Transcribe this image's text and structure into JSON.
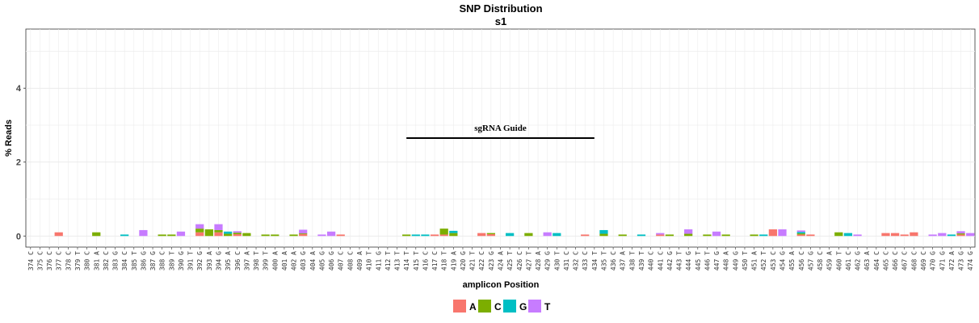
{
  "chart_data": {
    "type": "bar",
    "stacked": true,
    "title": "SNP Distribution",
    "subtitle": "s1",
    "xlabel": "amplicon Position",
    "ylabel": "% Reads",
    "ylim": [
      -0.3,
      5.6
    ],
    "yticks": [
      0,
      2,
      4
    ],
    "grid": true,
    "legend_position": "bottom",
    "categories": [
      "374 C",
      "375 C",
      "376 C",
      "377 C",
      "378 C",
      "379 T",
      "380 C",
      "381 A",
      "382 C",
      "383 G",
      "384 C",
      "385 T",
      "386 G",
      "387 G",
      "388 C",
      "389 T",
      "390 G",
      "391 T",
      "392 G",
      "393 A",
      "394 G",
      "395 A",
      "396 C",
      "397 A",
      "398 T",
      "399 T",
      "400 A",
      "401 A",
      "402 A",
      "403 G",
      "404 A",
      "405 G",
      "406 G",
      "407 C",
      "408 C",
      "409 A",
      "410 T",
      "411 G",
      "412 T",
      "413 T",
      "414 T",
      "415 T",
      "416 C",
      "417 C",
      "418 T",
      "419 A",
      "420 G",
      "421 T",
      "422 C",
      "423 G",
      "424 A",
      "425 T",
      "426 C",
      "427 T",
      "428 A",
      "429 G",
      "430 T",
      "431 C",
      "432 C",
      "433 C",
      "434 T",
      "435 T",
      "436 C",
      "437 A",
      "438 T",
      "439 T",
      "440 C",
      "441 C",
      "442 G",
      "443 T",
      "444 G",
      "445 T",
      "446 T",
      "447 G",
      "448 A",
      "449 G",
      "450 T",
      "451 A",
      "452 T",
      "453 C",
      "454 G",
      "455 A",
      "456 C",
      "457 G",
      "458 C",
      "459 A",
      "460 T",
      "461 C",
      "462 G",
      "463 A",
      "464 C",
      "465 C",
      "466 C",
      "467 C",
      "468 C",
      "469 C",
      "470 G",
      "471 G",
      "472 A",
      "473 G",
      "474 G"
    ],
    "series": [
      {
        "name": "A",
        "color": "#F8766D",
        "values": [
          0,
          0,
          0,
          0.1,
          0,
          0,
          0,
          0,
          0,
          0,
          0,
          0,
          0,
          0,
          0,
          0,
          0,
          0,
          0.1,
          0,
          0.1,
          0,
          0.05,
          0,
          0,
          0,
          0,
          0,
          0,
          0.05,
          0,
          0,
          0,
          0.04,
          0,
          0,
          0,
          0,
          0,
          0,
          0,
          0,
          0,
          0.04,
          0.04,
          0,
          0,
          0,
          0.08,
          0.05,
          0,
          0,
          0,
          0,
          0,
          0,
          0,
          0,
          0,
          0.04,
          0,
          0,
          0,
          0,
          0,
          0,
          0,
          0.04,
          0,
          0,
          0,
          0,
          0,
          0,
          0,
          0,
          0,
          0,
          0,
          0.18,
          0,
          0,
          0.04,
          0.04,
          0,
          0,
          0,
          0,
          0,
          0,
          0,
          0.08,
          0.08,
          0.04,
          0.1,
          0,
          0,
          0,
          0,
          0.04,
          0
        ]
      },
      {
        "name": "C",
        "color": "#7CAE00",
        "values": [
          0,
          0,
          0,
          0,
          0,
          0,
          0,
          0.1,
          0,
          0,
          0,
          0,
          0,
          0,
          0.04,
          0.04,
          0,
          0,
          0.1,
          0.18,
          0.06,
          0.06,
          0.04,
          0.08,
          0,
          0.04,
          0.04,
          0,
          0.04,
          0.02,
          0,
          0,
          0,
          0,
          0,
          0,
          0,
          0,
          0,
          0,
          0.04,
          0,
          0,
          0,
          0.16,
          0.08,
          0,
          0,
          0,
          0.03,
          0,
          0,
          0,
          0.08,
          0,
          0,
          0,
          0,
          0,
          0,
          0,
          0.06,
          0,
          0.04,
          0,
          0,
          0,
          0,
          0.04,
          0,
          0.06,
          0,
          0.04,
          0,
          0.04,
          0,
          0,
          0.04,
          0,
          0,
          0,
          0,
          0.03,
          0,
          0,
          0,
          0.1,
          0,
          0,
          0,
          0,
          0,
          0,
          0,
          0,
          0,
          0,
          0,
          0,
          0.03,
          0
        ]
      },
      {
        "name": "G",
        "color": "#00BFC4",
        "values": [
          0,
          0,
          0,
          0,
          0,
          0,
          0,
          0,
          0,
          0,
          0.04,
          0,
          0,
          0,
          0,
          0,
          0,
          0,
          0,
          0,
          0,
          0.06,
          0,
          0,
          0,
          0,
          0,
          0,
          0,
          0,
          0,
          0,
          0,
          0,
          0,
          0,
          0,
          0,
          0,
          0,
          0,
          0.04,
          0.04,
          0,
          0,
          0.06,
          0,
          0,
          0,
          0,
          0,
          0.08,
          0,
          0,
          0,
          0,
          0.08,
          0,
          0,
          0,
          0,
          0.1,
          0,
          0,
          0,
          0.04,
          0,
          0,
          0,
          0,
          0,
          0,
          0,
          0,
          0,
          0,
          0,
          0,
          0.04,
          0,
          0,
          0,
          0.04,
          0,
          0,
          0,
          0,
          0.08,
          0,
          0,
          0,
          0,
          0,
          0,
          0,
          0,
          0,
          0,
          0.04,
          0,
          0
        ]
      },
      {
        "name": "T",
        "color": "#C77CFF",
        "values": [
          0,
          0,
          0,
          0,
          0,
          0,
          0,
          0,
          0,
          0,
          0,
          0,
          0.16,
          0,
          0,
          0,
          0.12,
          0,
          0.12,
          0,
          0.16,
          0,
          0.04,
          0,
          0,
          0,
          0,
          0,
          0,
          0.1,
          0,
          0.04,
          0.12,
          0,
          0,
          0,
          0,
          0,
          0,
          0,
          0,
          0,
          0,
          0,
          0,
          0,
          0,
          0,
          0,
          0,
          0,
          0,
          0,
          0,
          0,
          0.1,
          0,
          0,
          0,
          0,
          0,
          0,
          0,
          0,
          0,
          0,
          0,
          0.04,
          0,
          0,
          0.12,
          0,
          0,
          0.12,
          0,
          0,
          0,
          0,
          0,
          0,
          0.18,
          0,
          0.04,
          0,
          0,
          0,
          0,
          0,
          0.04,
          0,
          0,
          0,
          0,
          0,
          0,
          0,
          0.04,
          0.08,
          0,
          0.06,
          0.08
        ]
      }
    ],
    "annotations": [
      {
        "text": "sgRNA Guide",
        "type": "segment",
        "x_start": "414 T",
        "x_end": "434 T",
        "y": 2.65
      }
    ]
  }
}
